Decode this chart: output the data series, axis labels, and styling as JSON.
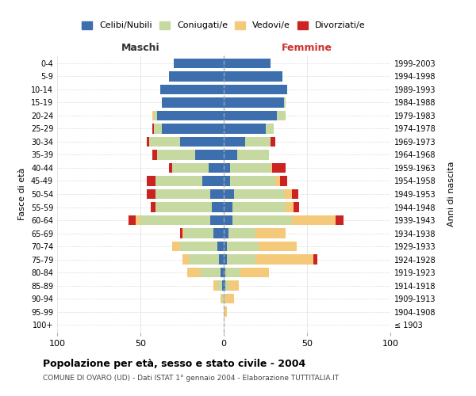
{
  "age_groups": [
    "100+",
    "95-99",
    "90-94",
    "85-89",
    "80-84",
    "75-79",
    "70-74",
    "65-69",
    "60-64",
    "55-59",
    "50-54",
    "45-49",
    "40-44",
    "35-39",
    "30-34",
    "25-29",
    "20-24",
    "15-19",
    "10-14",
    "5-9",
    "0-4"
  ],
  "birth_years": [
    "≤ 1903",
    "1904-1908",
    "1909-1913",
    "1914-1918",
    "1919-1923",
    "1924-1928",
    "1929-1933",
    "1934-1938",
    "1939-1943",
    "1944-1948",
    "1949-1953",
    "1954-1958",
    "1959-1963",
    "1964-1968",
    "1969-1973",
    "1974-1978",
    "1979-1983",
    "1984-1988",
    "1989-1993",
    "1994-1998",
    "1999-2003"
  ],
  "male": {
    "celibi": [
      0,
      0,
      0,
      1,
      2,
      3,
      4,
      6,
      8,
      7,
      8,
      13,
      9,
      17,
      26,
      37,
      40,
      37,
      38,
      33,
      30
    ],
    "coniugati": [
      0,
      0,
      1,
      3,
      12,
      18,
      22,
      18,
      42,
      34,
      33,
      28,
      22,
      23,
      19,
      5,
      2,
      0,
      0,
      0,
      0
    ],
    "vedovi": [
      0,
      0,
      1,
      2,
      8,
      4,
      5,
      1,
      3,
      0,
      0,
      0,
      0,
      0,
      0,
      0,
      1,
      0,
      0,
      0,
      0
    ],
    "divorziati": [
      0,
      0,
      0,
      0,
      0,
      0,
      0,
      1,
      4,
      3,
      5,
      5,
      2,
      3,
      1,
      1,
      0,
      0,
      0,
      0,
      0
    ]
  },
  "female": {
    "nubili": [
      0,
      0,
      0,
      1,
      1,
      2,
      2,
      3,
      5,
      5,
      6,
      4,
      4,
      8,
      13,
      25,
      32,
      36,
      38,
      35,
      28
    ],
    "coniugate": [
      0,
      0,
      1,
      2,
      9,
      17,
      19,
      16,
      36,
      32,
      30,
      27,
      24,
      19,
      15,
      5,
      5,
      1,
      0,
      0,
      0
    ],
    "vedove": [
      0,
      2,
      5,
      6,
      17,
      35,
      23,
      18,
      26,
      5,
      5,
      3,
      1,
      0,
      0,
      0,
      0,
      0,
      0,
      0,
      0
    ],
    "divorziate": [
      0,
      0,
      0,
      0,
      0,
      2,
      0,
      0,
      5,
      3,
      4,
      4,
      8,
      0,
      3,
      0,
      0,
      0,
      0,
      0,
      0
    ]
  },
  "colors": {
    "celibi": "#3d6faf",
    "coniugati": "#c5d9a0",
    "vedovi": "#f5c97a",
    "divorziati": "#cc2222"
  },
  "xlim": 100,
  "title": "Popolazione per età, sesso e stato civile - 2004",
  "subtitle": "COMUNE DI OVARO (UD) - Dati ISTAT 1° gennaio 2004 - Elaborazione TUTTITALIA.IT",
  "ylabel_left": "Fasce di età",
  "ylabel_right": "Anni di nascita",
  "xlabel_maschi": "Maschi",
  "xlabel_femmine": "Femmine"
}
